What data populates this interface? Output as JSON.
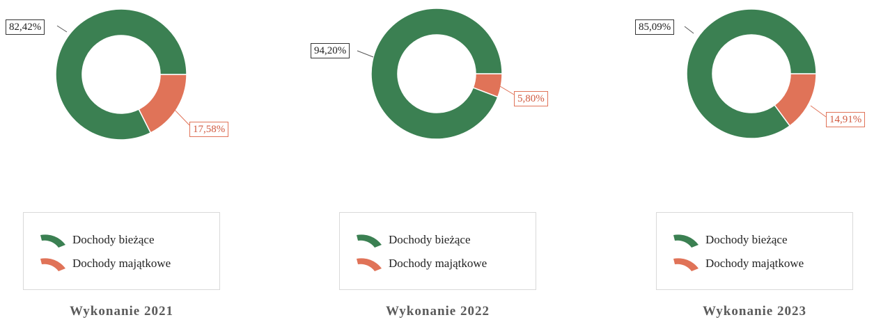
{
  "colors": {
    "current": "#3b8052",
    "capital": "#e07358"
  },
  "legend_labels": [
    "Dochody bieżące",
    "Dochody majątkowe"
  ],
  "chart_data": [
    {
      "type": "pie",
      "title": "Wykonanie 2021",
      "categories": [
        "Dochody bieżące",
        "Dochody majątkowe"
      ],
      "values": [
        82.42,
        17.58
      ],
      "labels": [
        "82,42%",
        "17,58%"
      ]
    },
    {
      "type": "pie",
      "title": "Wykonanie 2022",
      "categories": [
        "Dochody bieżące",
        "Dochody majątkowe"
      ],
      "values": [
        94.2,
        5.8
      ],
      "labels": [
        "94,20%",
        "5,80%"
      ]
    },
    {
      "type": "pie",
      "title": "Wykonanie 2023",
      "categories": [
        "Dochody bieżące",
        "Dochody majątkowe"
      ],
      "values": [
        85.09,
        14.91
      ],
      "labels": [
        "85,09%",
        "14,91%"
      ]
    }
  ]
}
